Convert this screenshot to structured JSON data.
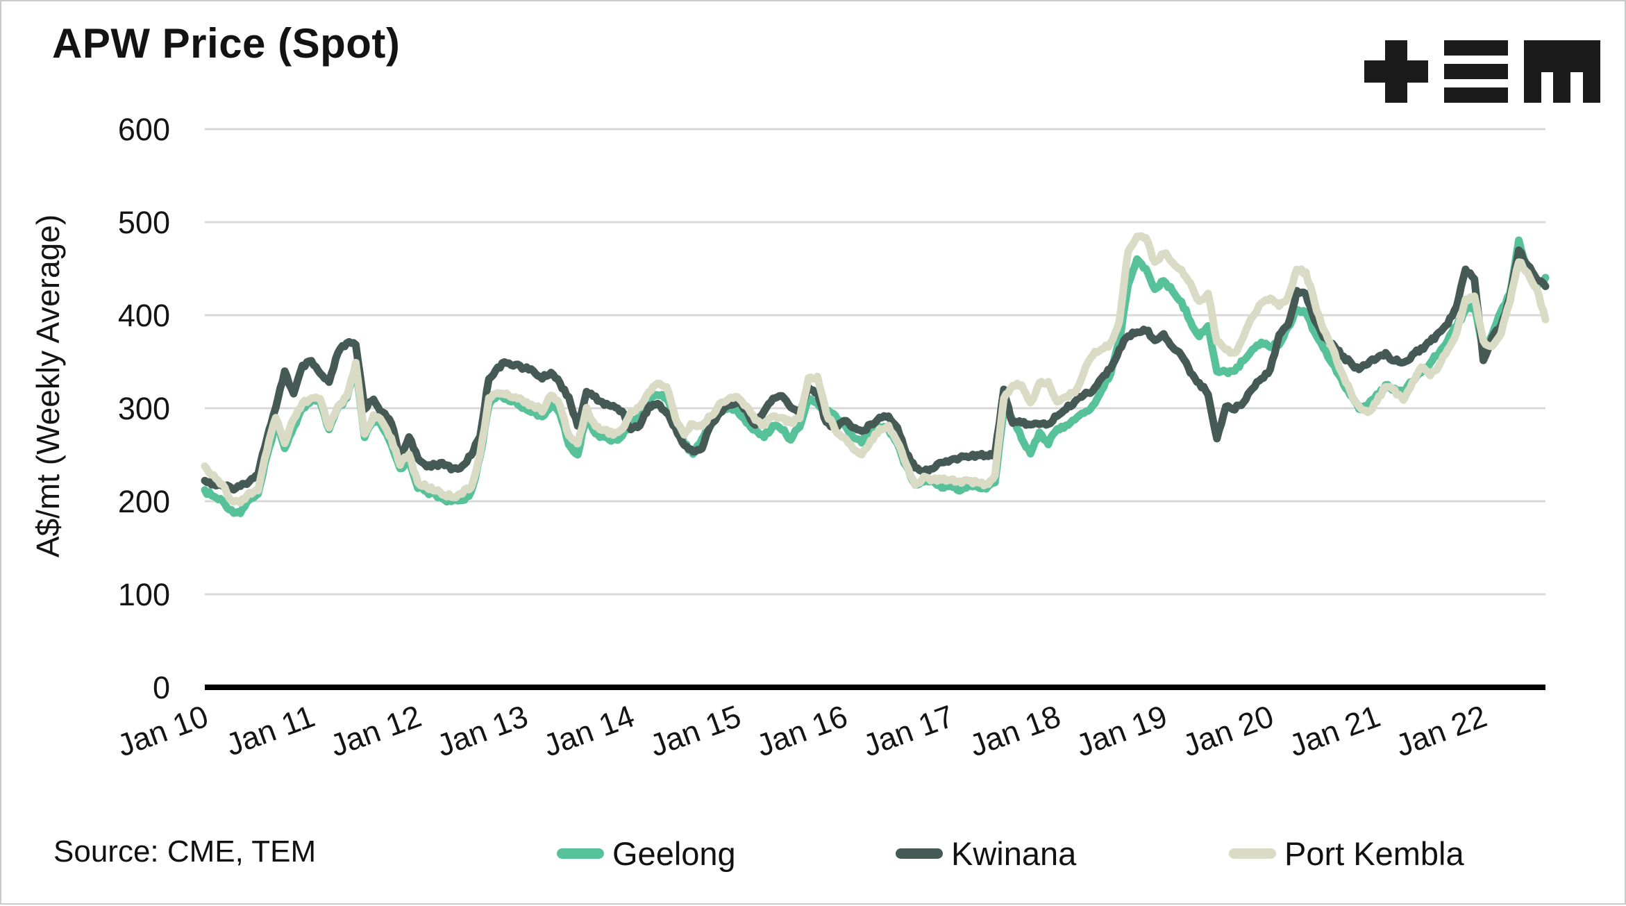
{
  "title": "APW Price (Spot)",
  "logo_name": "TEM logo (+ three-bars M)",
  "source_note": "Source: CME, TEM",
  "legend": [
    {
      "label": "Geelong",
      "color": "#57C29A"
    },
    {
      "label": "Kwinana",
      "color": "#465A55"
    },
    {
      "label": "Port Kembla",
      "color": "#D9DBC5"
    }
  ],
  "colors": {
    "gridline": "#d8d8d8",
    "zero_axis": "#000000",
    "text": "#141414",
    "background": "#ffffff"
  },
  "chart_data": {
    "type": "line",
    "title": "APW Price (Spot)",
    "xlabel": "",
    "ylabel": "A$/mt (Weekly Average)",
    "ylim": [
      0,
      600
    ],
    "y_ticks": [
      0,
      100,
      200,
      300,
      400,
      500,
      600
    ],
    "grid": "horizontal",
    "legend_position": "bottom",
    "x_start": "2010-01",
    "x_end": "2022-08",
    "sampling": "monthly",
    "x_tick_labels": [
      "Jan 10",
      "Jan 11",
      "Jan 12",
      "Jan 13",
      "Jan 14",
      "Jan 15",
      "Jan 16",
      "Jan 17",
      "Jan 18",
      "Jan 19",
      "Jan 20",
      "Jan 21",
      "Jan 22"
    ],
    "x_tick_month_index": [
      0,
      12,
      24,
      36,
      48,
      60,
      72,
      84,
      96,
      108,
      120,
      132,
      144
    ],
    "series": [
      {
        "name": "Geelong",
        "color": "#57C29A",
        "values": [
          211,
          205,
          200,
          190,
          188,
          202,
          207,
          248,
          285,
          258,
          280,
          300,
          307,
          307,
          277,
          300,
          310,
          345,
          268,
          288,
          280,
          260,
          235,
          245,
          215,
          210,
          207,
          202,
          200,
          201,
          210,
          247,
          304,
          315,
          310,
          307,
          300,
          297,
          290,
          304,
          295,
          260,
          250,
          292,
          272,
          270,
          265,
          270,
          284,
          292,
          310,
          315,
          312,
          288,
          262,
          251,
          267,
          282,
          297,
          300,
          297,
          284,
          277,
          269,
          282,
          277,
          267,
          280,
          310,
          305,
          297,
          292,
          282,
          270,
          264,
          272,
          280,
          278,
          262,
          237,
          219,
          221,
          223,
          215,
          219,
          212,
          217,
          215,
          214,
          221,
          298,
          288,
          268,
          252,
          274,
          262,
          277,
          282,
          287,
          295,
          302,
          319,
          337,
          372,
          434,
          460,
          449,
          429,
          436,
          426,
          414,
          394,
          377,
          389,
          339,
          339,
          341,
          351,
          364,
          371,
          366,
          369,
          387,
          406,
          404,
          382,
          364,
          349,
          332,
          314,
          299,
          304,
          314,
          324,
          321,
          316,
          329,
          339,
          349,
          359,
          374,
          389,
          405,
          410,
          362,
          379,
          404,
          424,
          480,
          449,
          431,
          440
        ]
      },
      {
        "name": "Kwinana",
        "color": "#465A55",
        "values": [
          222,
          218,
          216,
          214,
          216,
          222,
          230,
          268,
          300,
          340,
          315,
          345,
          350,
          337,
          327,
          360,
          370,
          368,
          300,
          310,
          295,
          285,
          245,
          270,
          245,
          238,
          240,
          239,
          235,
          237,
          250,
          270,
          332,
          344,
          349,
          347,
          343,
          340,
          332,
          339,
          327,
          312,
          280,
          317,
          312,
          304,
          302,
          297,
          277,
          282,
          302,
          305,
          295,
          279,
          260,
          253,
          257,
          283,
          295,
          305,
          307,
          297,
          282,
          297,
          310,
          314,
          300,
          295,
          322,
          317,
          284,
          280,
          287,
          280,
          275,
          282,
          291,
          291,
          280,
          252,
          237,
          233,
          235,
          242,
          244,
          247,
          248,
          249,
          250,
          251,
          320,
          283,
          285,
          283,
          282,
          283,
          292,
          299,
          307,
          315,
          319,
          332,
          342,
          364,
          377,
          382,
          384,
          374,
          379,
          366,
          357,
          339,
          327,
          315,
          268,
          302,
          299,
          307,
          322,
          332,
          342,
          379,
          389,
          426,
          424,
          394,
          377,
          369,
          357,
          349,
          342,
          347,
          354,
          359,
          351,
          349,
          357,
          364,
          371,
          381,
          391,
          409,
          449,
          440,
          352,
          377,
          389,
          419,
          470,
          454,
          439,
          430
        ]
      },
      {
        "name": "Port Kembla",
        "color": "#D9DBC5",
        "values": [
          237,
          228,
          218,
          200,
          198,
          209,
          211,
          255,
          290,
          262,
          288,
          305,
          310,
          310,
          280,
          303,
          312,
          348,
          272,
          292,
          285,
          268,
          240,
          250,
          220,
          215,
          212,
          207,
          205,
          209,
          215,
          250,
          310,
          317,
          315,
          312,
          307,
          303,
          297,
          314,
          304,
          270,
          262,
          300,
          280,
          277,
          272,
          277,
          295,
          302,
          317,
          327,
          323,
          290,
          272,
          284,
          280,
          292,
          304,
          310,
          312,
          302,
          287,
          282,
          292,
          290,
          284,
          290,
          332,
          334,
          295,
          277,
          269,
          257,
          251,
          265,
          278,
          281,
          264,
          240,
          217,
          226,
          223,
          223,
          224,
          221,
          223,
          219,
          218,
          228,
          310,
          325,
          325,
          305,
          327,
          328,
          307,
          312,
          317,
          339,
          357,
          364,
          369,
          394,
          469,
          485,
          483,
          457,
          467,
          457,
          449,
          434,
          414,
          424,
          372,
          364,
          359,
          377,
          399,
          414,
          419,
          409,
          419,
          449,
          446,
          414,
          384,
          364,
          339,
          319,
          301,
          296,
          307,
          324,
          319,
          309,
          327,
          344,
          336,
          346,
          364,
          381,
          417,
          420,
          372,
          366,
          380,
          414,
          458,
          446,
          429,
          395
        ]
      }
    ]
  }
}
